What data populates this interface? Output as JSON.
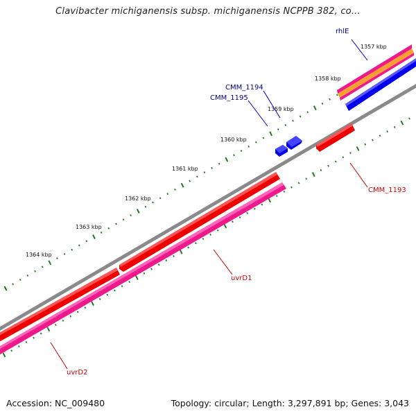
{
  "title": "Clavibacter michiganensis subsp. michiganensis NCPPB 382, co...",
  "footer": {
    "accession": "Accession: NC_009480",
    "summary": "Topology: circular; Length: 3,297,891 bp; Genes: 3,043"
  },
  "colors": {
    "forward_gene": "#0000ee",
    "reverse_gene": "#ee0000",
    "cds_pink": "#ee1a8c",
    "rrna_orange": "#f5a030",
    "backbone": "#8a8a8a",
    "tick": "#1f7a1f",
    "forward_label": "#00008b",
    "reverse_label": "#cc0000"
  },
  "ticks": [
    {
      "label": "1357 kbp"
    },
    {
      "label": "1358 kbp"
    },
    {
      "label": "1359 kbp"
    },
    {
      "label": "1360 kbp"
    },
    {
      "label": "1361 kbp"
    },
    {
      "label": "1362 kbp"
    },
    {
      "label": "1363 kbp"
    },
    {
      "label": "1364 kbp"
    }
  ],
  "features": [
    {
      "name": "rhlE",
      "strand": "forward"
    },
    {
      "name": "CMM_1194",
      "strand": "forward"
    },
    {
      "name": "CMM_1195",
      "strand": "forward"
    },
    {
      "name": "CMM_1193",
      "strand": "reverse"
    },
    {
      "name": "uvrD1",
      "strand": "reverse"
    },
    {
      "name": "uvrD2",
      "strand": "reverse"
    }
  ]
}
